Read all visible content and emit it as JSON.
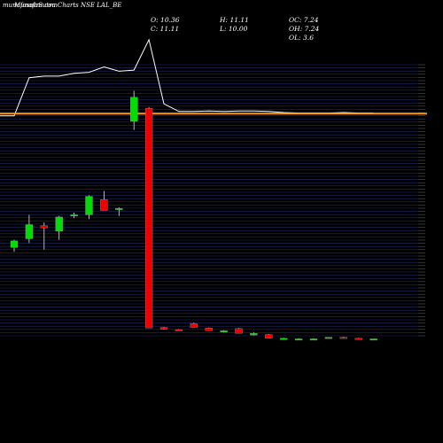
{
  "header": {
    "watermark": "munafasutra.com",
    "title": "MunafaSutra Charts NSE LAL_BE",
    "open": "O: 10.36",
    "close": "C: 11.11",
    "high": "H: 11.11",
    "low": "L: 10.00",
    "oc": "OC: 7.24",
    "oh": "OH: 7.24",
    "ol": "OL: 3.6"
  },
  "colors": {
    "background": "#000000",
    "grid": "#1e2a66",
    "up_candle": "#00dd00",
    "down_candle": "#ee0000",
    "price_line": "#ffffff",
    "reference_line": "#ff9900",
    "axis_text": "#ffffff"
  },
  "chart_data": {
    "type": "candlestick",
    "title": "MunafaSutra Charts NSE LAL_BE",
    "y_axis_position": "right",
    "grid": true,
    "ylim": [
      0,
      25
    ],
    "reference_line": 20.5,
    "candles": [
      {
        "o": 8.2,
        "h": 8.9,
        "l": 7.8,
        "c": 8.8
      },
      {
        "o": 9.0,
        "h": 11.2,
        "l": 8.6,
        "c": 10.3
      },
      {
        "o": 10.2,
        "h": 10.5,
        "l": 8.0,
        "c": 10.0
      },
      {
        "o": 9.7,
        "h": 11.1,
        "l": 8.9,
        "c": 11.0
      },
      {
        "o": 11.1,
        "h": 11.4,
        "l": 10.9,
        "c": 11.2
      },
      {
        "o": 11.2,
        "h": 13.0,
        "l": 10.8,
        "c": 12.9
      },
      {
        "o": 12.6,
        "h": 13.4,
        "l": 11.6,
        "c": 11.6
      },
      {
        "o": 11.8,
        "h": 11.9,
        "l": 11.1,
        "c": 11.8
      },
      {
        "o": 19.8,
        "h": 22.6,
        "l": 19.0,
        "c": 22.0
      },
      {
        "o": 21.0,
        "h": 21.1,
        "l": 0.8,
        "c": 0.8
      },
      {
        "o": 0.85,
        "h": 0.9,
        "l": 0.65,
        "c": 0.7
      },
      {
        "o": 0.65,
        "h": 0.7,
        "l": 0.55,
        "c": 0.6
      },
      {
        "o": 1.2,
        "h": 1.3,
        "l": 0.85,
        "c": 0.85
      },
      {
        "o": 0.8,
        "h": 0.85,
        "l": 0.55,
        "c": 0.55
      },
      {
        "o": 0.45,
        "h": 0.6,
        "l": 0.4,
        "c": 0.55
      },
      {
        "o": 0.75,
        "h": 0.8,
        "l": 0.3,
        "c": 0.3
      },
      {
        "o": 0.15,
        "h": 0.4,
        "l": 0.1,
        "c": 0.3
      },
      {
        "o": 0.2,
        "h": 0.25,
        "l": -0.15,
        "c": -0.15
      },
      {
        "o": -0.2,
        "h": -0.1,
        "l": -0.25,
        "c": -0.15
      },
      {
        "o": -0.2,
        "h": -0.15,
        "l": -0.25,
        "c": -0.2
      },
      {
        "o": -0.2,
        "h": -0.15,
        "l": -0.25,
        "c": -0.2
      },
      {
        "o": -0.1,
        "h": -0.05,
        "l": -0.15,
        "c": -0.05
      },
      {
        "o": -0.05,
        "h": 0.0,
        "l": -0.15,
        "c": -0.15
      },
      {
        "o": -0.15,
        "h": -0.1,
        "l": -0.25,
        "c": -0.25
      },
      {
        "o": -0.25,
        "h": -0.2,
        "l": -0.3,
        "c": -0.2
      }
    ],
    "price_line": [
      20.3,
      23.8,
      23.95,
      23.95,
      24.2,
      24.3,
      24.8,
      24.4,
      24.5,
      27.3,
      21.4,
      20.7,
      20.7,
      20.75,
      20.7,
      20.75,
      20.75,
      20.7,
      20.6,
      20.55,
      20.55,
      20.55,
      20.6,
      20.55,
      20.55
    ]
  }
}
